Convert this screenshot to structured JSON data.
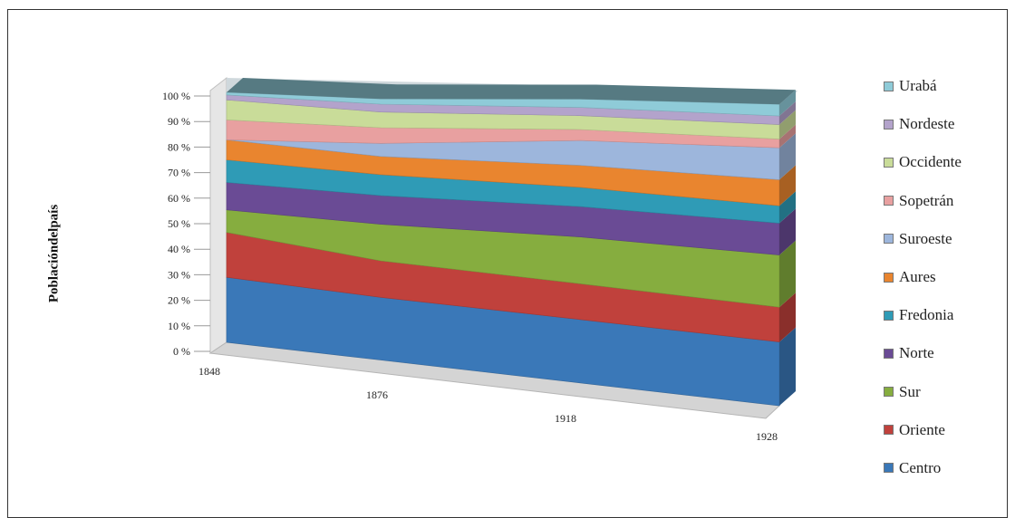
{
  "chart_data": {
    "type": "area",
    "stacked": true,
    "percent": true,
    "categories": [
      "1848",
      "1876",
      "1918",
      "1928"
    ],
    "ylabel": "Poblacióndelpaís",
    "yticks": [
      "0 %",
      "10 %",
      "20 %",
      "30 %",
      "40 %",
      "50 %",
      "60 %",
      "70 %",
      "80 %",
      "90 %",
      "100 %"
    ],
    "ylim": [
      0,
      100
    ],
    "legend_position": "right",
    "series": [
      {
        "name": "Centro",
        "color": "#3a78b8",
        "values": [
          26,
          24,
          23,
          22
        ]
      },
      {
        "name": "Oriente",
        "color": "#c0413c",
        "values": [
          18,
          14,
          13,
          12
        ]
      },
      {
        "name": "Sur",
        "color": "#86ad3f",
        "values": [
          9,
          14,
          17,
          18
        ]
      },
      {
        "name": "Norte",
        "color": "#6a4b95",
        "values": [
          11,
          11,
          11,
          11
        ]
      },
      {
        "name": "Fredonia",
        "color": "#2f9bb6",
        "values": [
          9,
          8,
          7,
          6
        ]
      },
      {
        "name": "Aures",
        "color": "#e9852f",
        "values": [
          8,
          7,
          8,
          9
        ]
      },
      {
        "name": "Suroeste",
        "color": "#9db6dc",
        "values": [
          0,
          5,
          9,
          11
        ]
      },
      {
        "name": "Sopetrán",
        "color": "#e8a0a0",
        "values": [
          8,
          6,
          4,
          3
        ]
      },
      {
        "name": "Occidente",
        "color": "#c9dc99",
        "values": [
          8,
          6,
          5,
          5
        ]
      },
      {
        "name": "Nordeste",
        "color": "#b3a3cb",
        "values": [
          2,
          3,
          3,
          3
        ]
      },
      {
        "name": "Urabá",
        "color": "#8fcbd8",
        "values": [
          1,
          2,
          3,
          4
        ]
      }
    ]
  }
}
